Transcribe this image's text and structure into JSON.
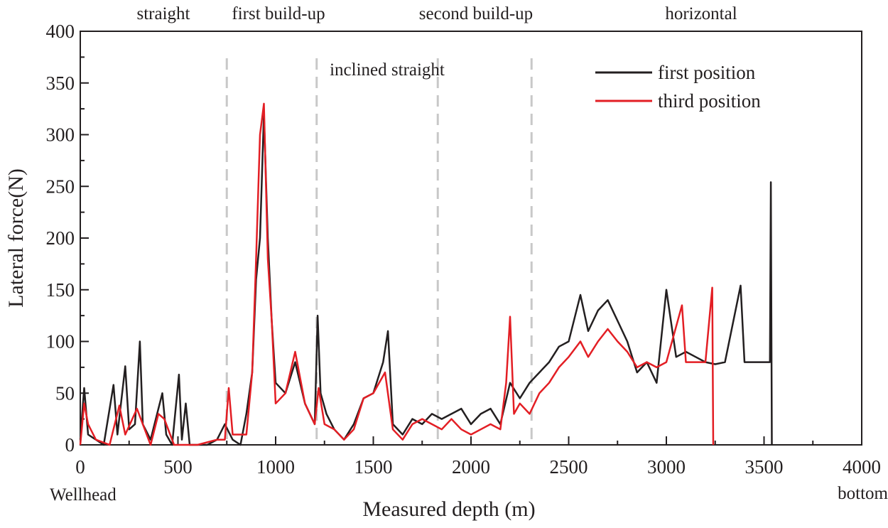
{
  "chart_data": {
    "type": "line",
    "x_label": "Measured depth (m)",
    "y_label": "Lateral force(N)",
    "annotations": [
      "straight",
      "first build-up",
      "inclined straight",
      "second build-up",
      "horizontal",
      "Wellhead",
      "bottom"
    ],
    "boundaries": [
      750,
      1210,
      1830,
      2310
    ],
    "xlim": [
      0,
      4000
    ],
    "xticks": [
      0,
      500,
      1000,
      1500,
      2000,
      2500,
      3000,
      3500,
      4000
    ],
    "ylim": [
      0,
      400
    ],
    "yticks": [
      0,
      50,
      100,
      150,
      200,
      250,
      300,
      350,
      400
    ],
    "legend": "upper right",
    "series": [
      {
        "name": "first position",
        "color": "#231f20",
        "x": [
          0,
          20,
          40,
          80,
          120,
          170,
          190,
          230,
          250,
          280,
          305,
          320,
          360,
          420,
          440,
          470,
          505,
          520,
          540,
          560,
          600,
          650,
          700,
          740,
          780,
          820,
          850,
          880,
          900,
          920,
          940,
          960,
          980,
          1000,
          1050,
          1100,
          1150,
          1200,
          1215,
          1230,
          1260,
          1300,
          1350,
          1400,
          1450,
          1500,
          1550,
          1575,
          1600,
          1650,
          1700,
          1750,
          1800,
          1850,
          1900,
          1950,
          2000,
          2050,
          2100,
          2150,
          2200,
          2250,
          2300,
          2350,
          2400,
          2450,
          2500,
          2560,
          2600,
          2650,
          2700,
          2750,
          2800,
          2850,
          2900,
          2950,
          3000,
          3050,
          3100,
          3150,
          3200,
          3250,
          3300,
          3380,
          3400,
          3450,
          3500,
          3530,
          3535,
          3540
        ],
        "values": [
          5,
          55,
          10,
          5,
          0,
          58,
          10,
          76,
          15,
          20,
          100,
          20,
          5,
          50,
          10,
          0,
          68,
          5,
          40,
          0,
          0,
          0,
          5,
          20,
          5,
          0,
          30,
          70,
          160,
          200,
          320,
          200,
          120,
          60,
          50,
          80,
          40,
          20,
          125,
          50,
          30,
          15,
          5,
          20,
          45,
          50,
          80,
          110,
          20,
          10,
          25,
          20,
          30,
          25,
          30,
          35,
          20,
          30,
          35,
          20,
          60,
          45,
          60,
          70,
          80,
          95,
          100,
          145,
          110,
          130,
          140,
          120,
          100,
          70,
          80,
          60,
          150,
          85,
          90,
          85,
          80,
          78,
          80,
          154,
          80,
          80,
          80,
          80,
          254,
          0
        ]
      },
      {
        "name": "third position",
        "color": "#e31e24",
        "x": [
          0,
          20,
          40,
          80,
          150,
          200,
          230,
          290,
          320,
          360,
          400,
          430,
          480,
          550,
          600,
          700,
          740,
          760,
          780,
          850,
          880,
          900,
          920,
          940,
          960,
          980,
          1000,
          1050,
          1100,
          1150,
          1200,
          1220,
          1250,
          1300,
          1350,
          1400,
          1450,
          1500,
          1560,
          1600,
          1650,
          1700,
          1750,
          1800,
          1850,
          1900,
          1950,
          2000,
          2050,
          2100,
          2150,
          2180,
          2200,
          2220,
          2250,
          2300,
          2350,
          2400,
          2450,
          2500,
          2560,
          2600,
          2650,
          2700,
          2750,
          2800,
          2850,
          2900,
          2950,
          3000,
          3080,
          3100,
          3150,
          3200,
          3235,
          3240
        ],
        "values": [
          0,
          40,
          20,
          5,
          0,
          38,
          10,
          35,
          20,
          0,
          30,
          25,
          0,
          0,
          0,
          5,
          5,
          55,
          10,
          10,
          70,
          180,
          300,
          330,
          180,
          120,
          40,
          50,
          90,
          40,
          20,
          55,
          20,
          15,
          5,
          15,
          45,
          50,
          70,
          15,
          5,
          20,
          25,
          20,
          15,
          25,
          15,
          10,
          15,
          20,
          15,
          60,
          124,
          30,
          40,
          30,
          50,
          60,
          75,
          85,
          100,
          85,
          100,
          112,
          100,
          90,
          75,
          80,
          75,
          80,
          135,
          80,
          80,
          80,
          152,
          0
        ]
      }
    ]
  }
}
